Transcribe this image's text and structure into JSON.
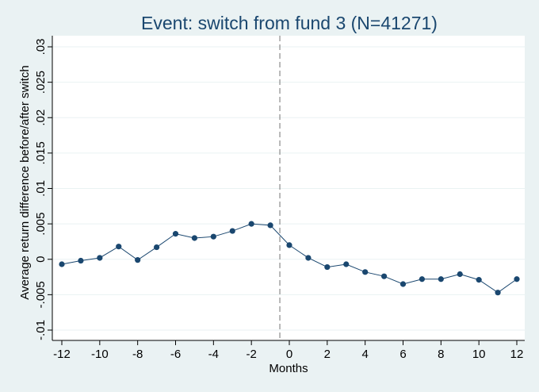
{
  "chart_data": {
    "type": "line",
    "title": "Event: switch from fund 3 (N=41271)",
    "xlabel": "Months",
    "ylabel": "Average return difference before/after switch",
    "xlim": [
      -12,
      12
    ],
    "ylim": [
      -0.01,
      0.03
    ],
    "x_ticks": [
      -12,
      -10,
      -8,
      -6,
      -4,
      -2,
      0,
      2,
      4,
      6,
      8,
      10,
      12
    ],
    "x_tick_labels": [
      "-12",
      "-10",
      "-8",
      "-6",
      "-4",
      "-2",
      "0",
      "2",
      "4",
      "6",
      "8",
      "10",
      "12"
    ],
    "y_ticks": [
      -0.01,
      -0.005,
      0,
      0.005,
      0.01,
      0.015,
      0.02,
      0.025,
      0.03
    ],
    "y_tick_labels": [
      "-.01",
      "-.005",
      "0",
      ".005",
      ".01",
      ".015",
      ".02",
      ".025",
      ".03"
    ],
    "grid": true,
    "reference_line": {
      "x": -0.5,
      "style": "dashed"
    },
    "series": [
      {
        "x": [
          -12,
          -11,
          -10,
          -9,
          -8,
          -7,
          -6,
          -5,
          -4,
          -3,
          -2,
          -1,
          0,
          1,
          2,
          3,
          4,
          5,
          6,
          7,
          8,
          9,
          10,
          11,
          12
        ],
        "values": [
          -0.0007,
          -0.0002,
          0.0002,
          0.0018,
          -0.0001,
          0.0017,
          0.0036,
          0.003,
          0.0032,
          0.004,
          0.005,
          0.0048,
          0.002,
          0.0002,
          -0.0011,
          -0.0007,
          -0.0018,
          -0.0024,
          -0.0035,
          -0.0028,
          -0.0028,
          -0.0021,
          -0.0029,
          -0.0047,
          -0.0028
        ],
        "color": "#1a476f"
      }
    ]
  }
}
